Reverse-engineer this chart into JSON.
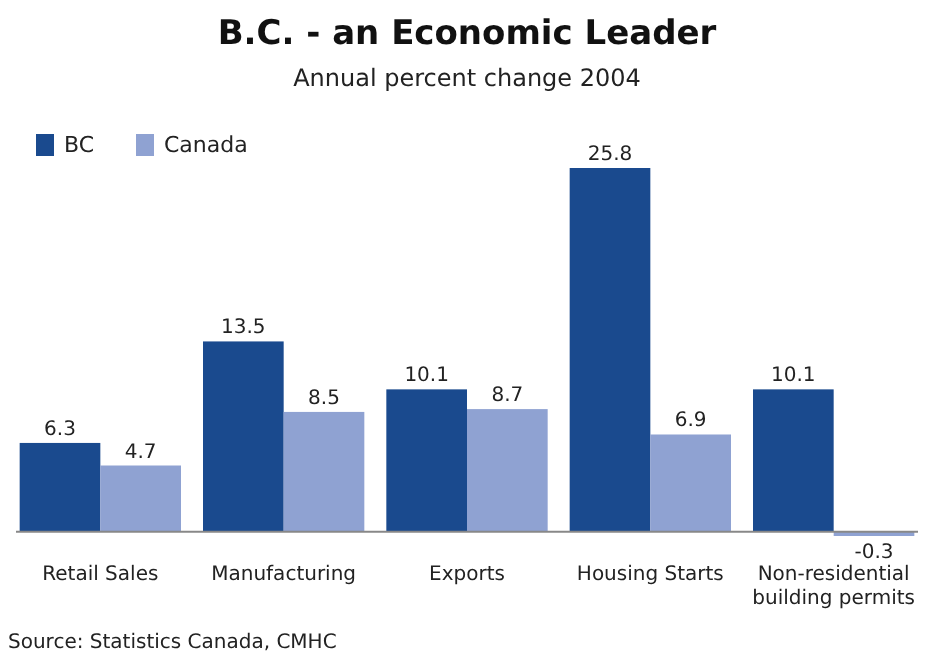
{
  "chart_data": {
    "type": "bar",
    "title": "B.C. - an Economic Leader",
    "subtitle": "Annual percent change 2004",
    "categories": [
      "Retail Sales",
      "Manufacturing",
      "Exports",
      "Housing Starts",
      "Non-residential building permits"
    ],
    "series": [
      {
        "name": "BC",
        "color": "#1a4a8e",
        "values": [
          6.3,
          13.5,
          10.1,
          25.8,
          10.1
        ]
      },
      {
        "name": "Canada",
        "color": "#8fa2d2",
        "values": [
          4.7,
          8.5,
          8.7,
          6.9,
          -0.3
        ]
      }
    ],
    "data_labels": true,
    "legend": "top left",
    "annotations": [
      "Source: Statistics Canada, CMHC"
    ]
  }
}
